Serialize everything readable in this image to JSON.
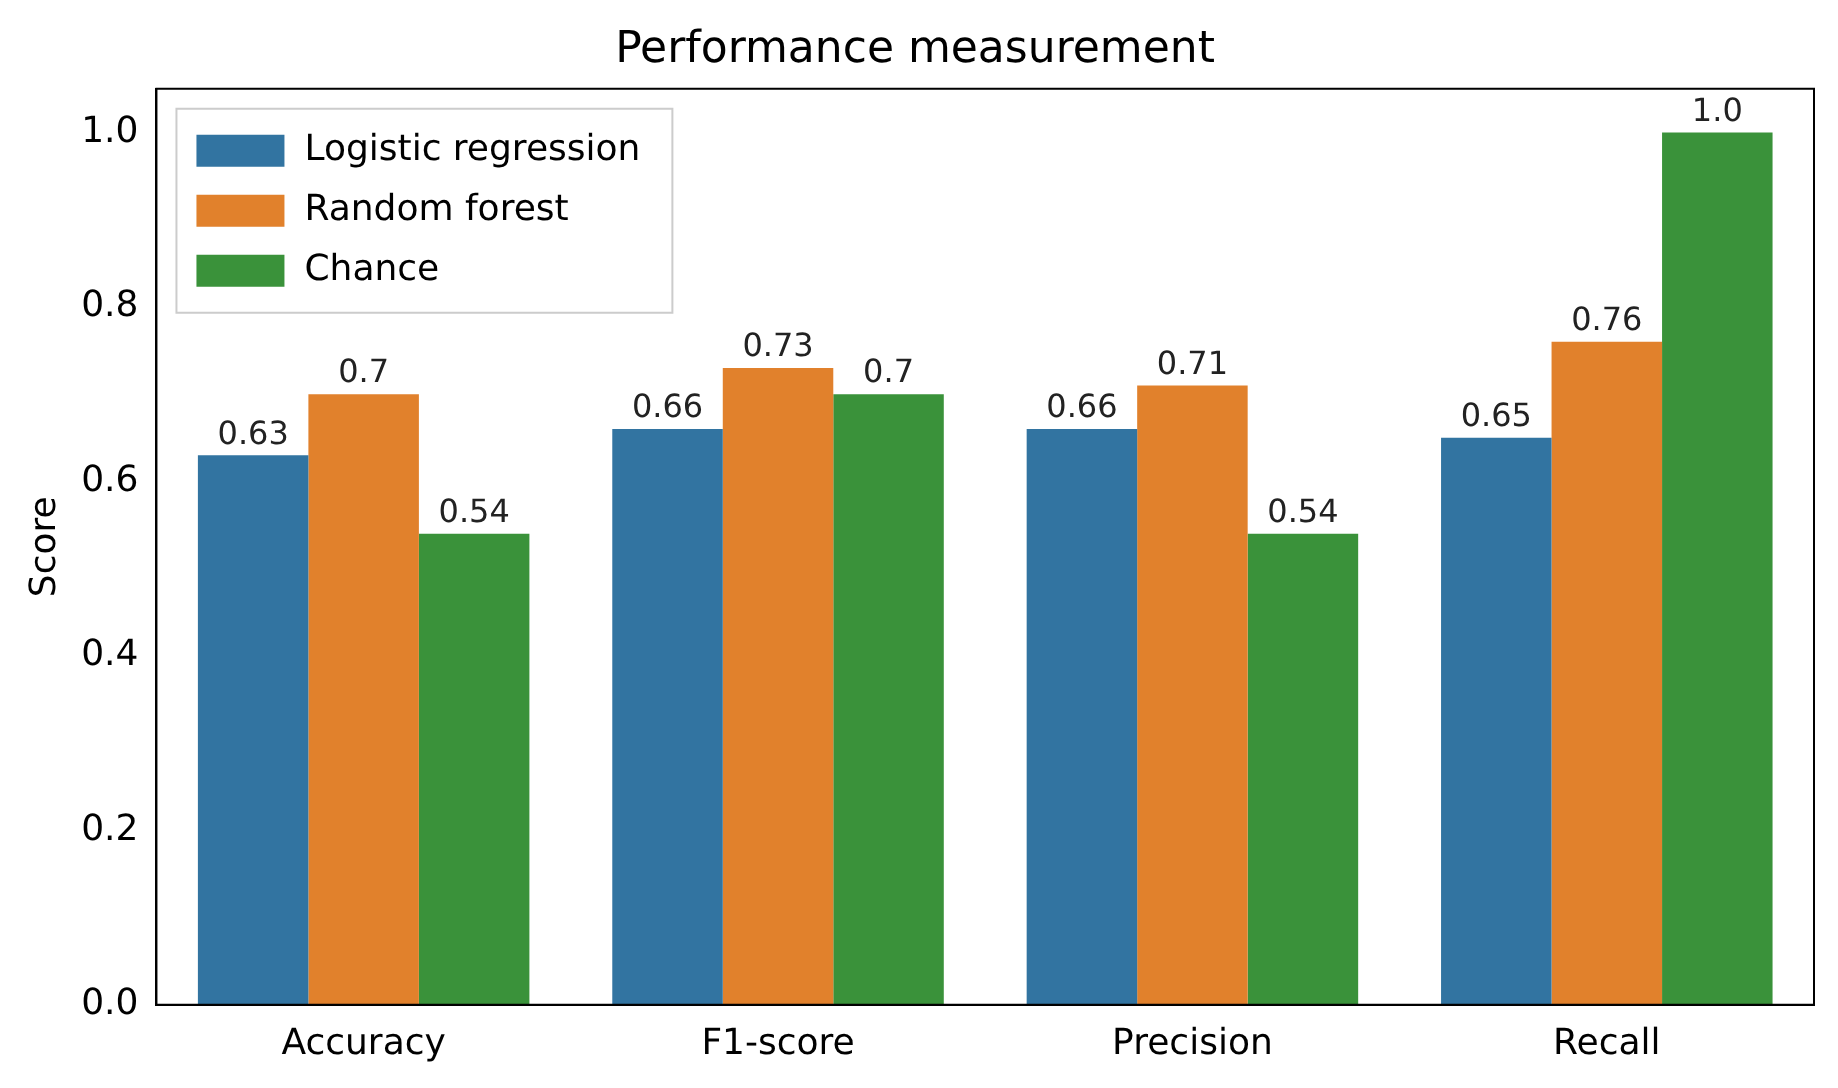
{
  "chart_data": {
    "type": "bar",
    "title": "Performance measurement",
    "ylabel": "Score",
    "categories": [
      "Accuracy",
      "F1-score",
      "Precision",
      "Recall"
    ],
    "series": [
      {
        "name": "Logistic regression",
        "color": "#3274a1",
        "values": [
          0.63,
          0.66,
          0.66,
          0.65
        ],
        "value_labels": [
          "0.63",
          "0.66",
          "0.66",
          "0.65"
        ]
      },
      {
        "name": "Random forest",
        "color": "#e1812c",
        "values": [
          0.7,
          0.73,
          0.71,
          0.76
        ],
        "value_labels": [
          "0.7",
          "0.73",
          "0.71",
          "0.76"
        ]
      },
      {
        "name": "Chance",
        "color": "#3a923a",
        "values": [
          0.54,
          0.7,
          0.54,
          1.0
        ],
        "value_labels": [
          "0.54",
          "0.7",
          "0.54",
          "1.0"
        ]
      }
    ],
    "ylim": [
      0,
      1.05
    ],
    "yticks": [
      {
        "value": 0,
        "label": "0.0"
      },
      0.2,
      0.4,
      0.6,
      0.8,
      {
        "value": 1,
        "label": "1.0"
      }
    ],
    "grid": false,
    "legend": "top left"
  }
}
